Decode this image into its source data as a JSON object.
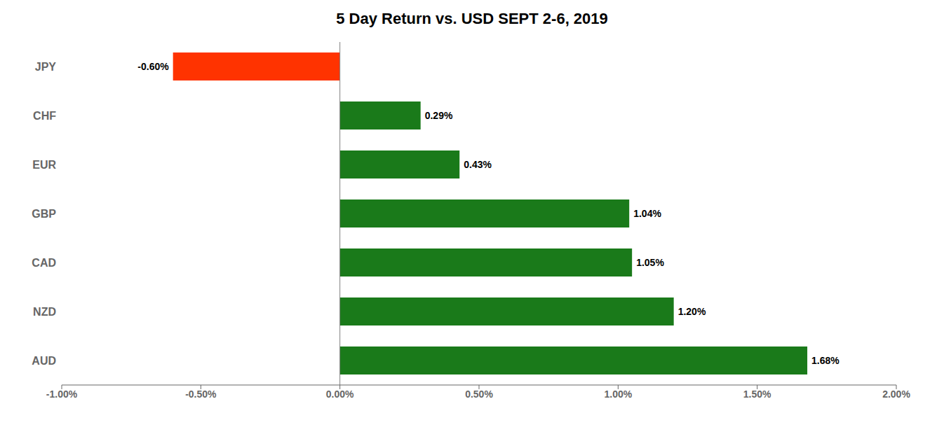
{
  "chart_data": {
    "type": "bar",
    "orientation": "horizontal",
    "title": "5 Day Return vs. USD SEPT 2-6, 2019",
    "categories": [
      "JPY",
      "CHF",
      "EUR",
      "GBP",
      "CAD",
      "NZD",
      "AUD"
    ],
    "values": [
      -0.6,
      0.29,
      0.43,
      1.04,
      1.05,
      1.2,
      1.68
    ],
    "value_labels": [
      "-0.60%",
      "0.29%",
      "0.43%",
      "1.04%",
      "1.05%",
      "1.20%",
      "1.68%"
    ],
    "colors": [
      "#ff3300",
      "#1a7a1a",
      "#1a7a1a",
      "#1a7a1a",
      "#1a7a1a",
      "#1a7a1a",
      "#1a7a1a"
    ],
    "xlim": [
      -1.0,
      2.0
    ],
    "xticks": [
      {
        "value": -1.0,
        "label": "-1.00%"
      },
      {
        "value": -0.5,
        "label": "-0.50%"
      },
      {
        "value": 0.0,
        "label": "0.00%"
      },
      {
        "value": 0.5,
        "label": "0.50%"
      },
      {
        "value": 1.0,
        "label": "1.00%"
      },
      {
        "value": 1.5,
        "label": "1.50%"
      },
      {
        "value": 2.0,
        "label": "2.00%"
      }
    ],
    "data_labels": true,
    "grid": false
  }
}
